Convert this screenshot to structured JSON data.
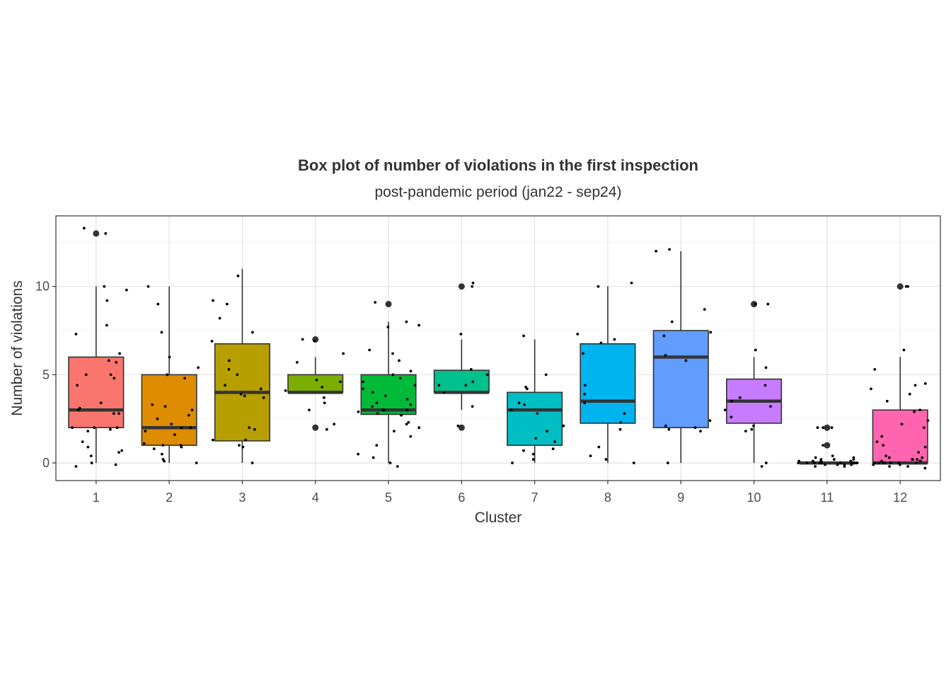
{
  "chart_data": {
    "type": "boxplot",
    "title": "Box plot of number of violations in the first inspection",
    "subtitle": "post-pandemic period (jan22 - sep24)",
    "xlabel": "Cluster",
    "ylabel": "Number of violations",
    "categories": [
      "1",
      "2",
      "3",
      "4",
      "5",
      "6",
      "7",
      "8",
      "9",
      "10",
      "11",
      "12"
    ],
    "ylim": [
      -1,
      14
    ],
    "yticks": [
      0,
      5,
      10
    ],
    "grid": true,
    "legend": "none",
    "jitter": true,
    "boxes": [
      {
        "category": "1",
        "color": "#F8766D",
        "min": 0,
        "q1": 2,
        "median": 3,
        "q3": 6,
        "max": 10,
        "outliers": [
          13
        ]
      },
      {
        "category": "2",
        "color": "#DE8C00",
        "min": 0,
        "q1": 1,
        "median": 2,
        "q3": 5,
        "max": 10,
        "outliers": []
      },
      {
        "category": "3",
        "color": "#B79F00",
        "min": 0,
        "q1": 1.25,
        "median": 4,
        "q3": 6.75,
        "max": 11,
        "outliers": []
      },
      {
        "category": "4",
        "color": "#7CAE00",
        "min": 4,
        "q1": 4,
        "median": 4,
        "q3": 5,
        "max": 6,
        "outliers": [
          2,
          7
        ]
      },
      {
        "category": "5",
        "color": "#00BA38",
        "min": 0,
        "q1": 2.75,
        "median": 3,
        "q3": 5,
        "max": 8,
        "outliers": [
          9
        ]
      },
      {
        "category": "6",
        "color": "#00C08B",
        "min": 3,
        "q1": 4,
        "median": 4,
        "q3": 5.25,
        "max": 7,
        "outliers": [
          2,
          10
        ]
      },
      {
        "category": "7",
        "color": "#00BFC4",
        "min": 0,
        "q1": 1,
        "median": 3,
        "q3": 4,
        "max": 7,
        "outliers": []
      },
      {
        "category": "8",
        "color": "#00B4F0",
        "min": 0,
        "q1": 2.25,
        "median": 3.5,
        "q3": 6.75,
        "max": 10,
        "outliers": []
      },
      {
        "category": "9",
        "color": "#619CFF",
        "min": 0,
        "q1": 2,
        "median": 6,
        "q3": 7.5,
        "max": 12,
        "outliers": []
      },
      {
        "category": "10",
        "color": "#C77CFF",
        "min": 0,
        "q1": 2.25,
        "median": 3.5,
        "q3": 4.75,
        "max": 6,
        "outliers": [
          9
        ]
      },
      {
        "category": "11",
        "color": "#F564E3",
        "min": 0,
        "q1": 0,
        "median": 0,
        "q3": 0,
        "max": 0,
        "outliers": [
          1,
          2
        ]
      },
      {
        "category": "12",
        "color": "#FF64B0",
        "min": 0,
        "q1": 0,
        "median": 0,
        "q3": 3,
        "max": 6,
        "outliers": [
          10
        ]
      }
    ],
    "points": [
      {
        "category": "1",
        "values": [
          13,
          13.3,
          10,
          9.8,
          9.2,
          7.8,
          7.3,
          6.2,
          5.8,
          5.7,
          5,
          5,
          4.8,
          4.4,
          3.4,
          3.1,
          3,
          2.8,
          2.8,
          2,
          2,
          2,
          1.9,
          1.8,
          1.2,
          0.9,
          0.7,
          0.6,
          0.4,
          0,
          -0.1,
          -0.2
        ]
      },
      {
        "category": "2",
        "values": [
          10,
          9,
          7.4,
          6,
          5.4,
          5,
          4.8,
          3.3,
          3.2,
          3,
          2.7,
          2.5,
          2.2,
          2,
          2,
          1.8,
          1.6,
          1.1,
          1,
          1,
          0.9,
          0.8,
          0.5,
          0.2,
          0.1,
          0
        ]
      },
      {
        "category": "3",
        "values": [
          10.6,
          9.2,
          9,
          8.2,
          7.4,
          6.9,
          5.8,
          5.3,
          5,
          4.4,
          4.2,
          3.9,
          3.8,
          3.7,
          2,
          1.9,
          1.3,
          1.3,
          1,
          0.9,
          0
        ]
      },
      {
        "category": "4",
        "values": [
          7,
          6.9,
          6.2,
          5.7,
          4.7,
          4.6,
          4.3,
          4.1,
          3.7,
          3.4,
          3,
          2.2,
          1.9
        ]
      },
      {
        "category": "5",
        "values": [
          9.1,
          8,
          7.8,
          7.7,
          6.4,
          6.2,
          5.8,
          5.2,
          5,
          4.8,
          4.6,
          4.4,
          4.2,
          4,
          3.8,
          3.6,
          3.4,
          3.3,
          3.2,
          3,
          3,
          3,
          2.9,
          2.8,
          2.7,
          2.3,
          2.2,
          2,
          1.8,
          1.5,
          1,
          0.5,
          0.3,
          0,
          -0.2
        ]
      },
      {
        "category": "6",
        "values": [
          10.2,
          10,
          7.3,
          5.3,
          5,
          4.6,
          4.4,
          4.4,
          4,
          3.2,
          2.1
        ]
      },
      {
        "category": "7",
        "values": [
          7.2,
          5,
          4.3,
          4.2,
          3.4,
          3.3,
          3,
          2.8,
          2.1,
          1.8,
          1.4,
          1.2,
          0.8,
          0.7,
          0.5,
          0.2,
          0
        ]
      },
      {
        "category": "8",
        "values": [
          10.2,
          10,
          7.3,
          7,
          6.8,
          6.2,
          4.4,
          3.9,
          3.4,
          2.8,
          2.3,
          1.9,
          0.9,
          0.4,
          0.2,
          0
        ]
      },
      {
        "category": "9",
        "values": [
          12.1,
          12,
          8.7,
          8,
          7.4,
          7.2,
          6.1,
          5.8,
          2.4,
          2.1,
          2,
          1.9,
          1.8,
          0
        ]
      },
      {
        "category": "10",
        "values": [
          9,
          9,
          6.4,
          5.4,
          4.4,
          3.7,
          3.5,
          3.2,
          3,
          2.6,
          2.1,
          1.9,
          1.8,
          0,
          -0.2
        ]
      },
      {
        "category": "11",
        "values": [
          2,
          2,
          2,
          1,
          0.4,
          0.3,
          0.3,
          0.2,
          0.2,
          0.2,
          0.1,
          0.1,
          0.1,
          0.1,
          0.1,
          0,
          0,
          0,
          0,
          0,
          0,
          0,
          0,
          0,
          0,
          0,
          -0.1,
          -0.1,
          -0.1,
          -0.1,
          -0.2,
          -0.2
        ]
      },
      {
        "category": "12",
        "values": [
          10,
          10,
          6.4,
          5.3,
          4.5,
          4.4,
          4.2,
          3.9,
          3.5,
          3,
          2.9,
          2.4,
          2.2,
          2,
          1.5,
          1.2,
          1,
          0.9,
          0.6,
          0.4,
          0.3,
          0.3,
          0.2,
          0.2,
          0.2,
          0.1,
          0.1,
          0.1,
          0,
          0,
          0,
          0,
          0,
          0,
          0,
          -0.1,
          -0.1,
          -0.2,
          -0.2,
          -0.3
        ]
      }
    ]
  }
}
